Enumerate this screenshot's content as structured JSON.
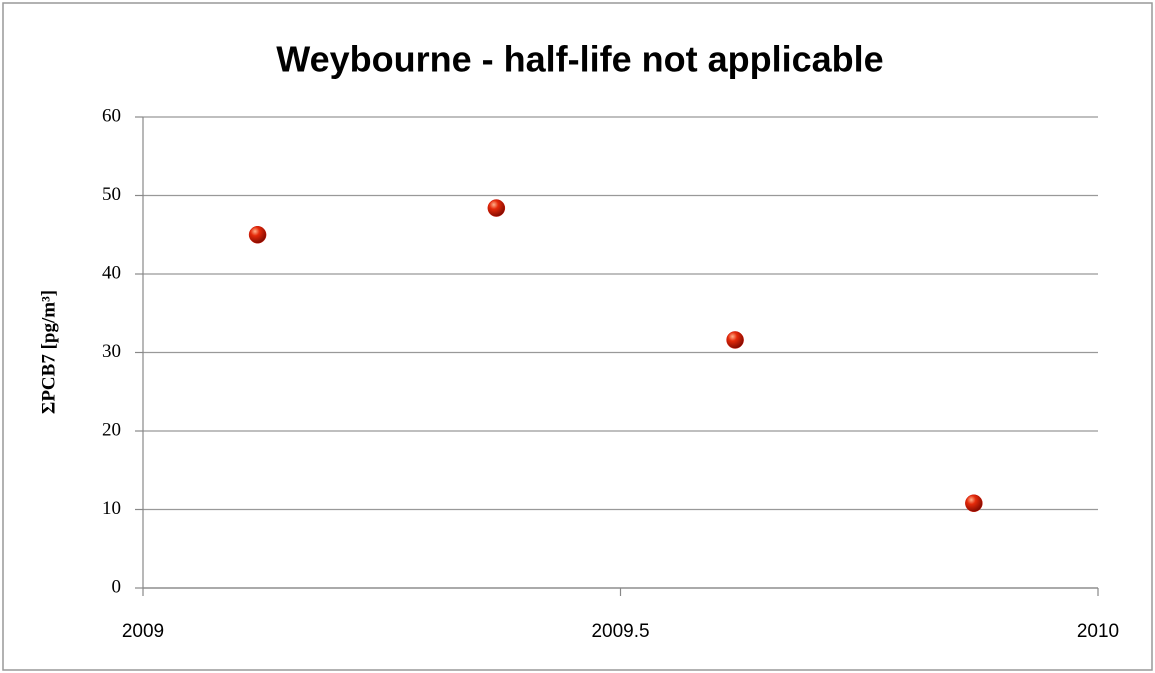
{
  "chart_data": {
    "type": "scatter",
    "title": "Weybourne - half-life not applicable",
    "y_label": "ΣPCB7 [pg/m³]",
    "x": [
      2009.12,
      2009.37,
      2009.62,
      2009.87
    ],
    "values": [
      45.0,
      48.4,
      31.6,
      10.8
    ],
    "color": "#cc1100",
    "xlim": [
      2009,
      2010
    ],
    "xticks": [
      2009,
      2009.5,
      2010
    ],
    "ylim": [
      0,
      60
    ],
    "yticks": [
      0,
      10,
      20,
      30,
      40,
      50,
      60
    ],
    "grid": true
  }
}
